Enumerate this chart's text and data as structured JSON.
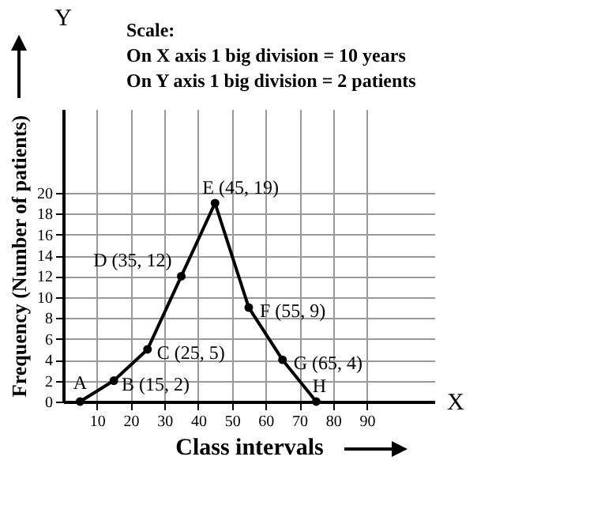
{
  "chart_data": {
    "type": "line",
    "xlabel": "Class intervals",
    "ylabel": "Frequency (Number of patients)",
    "x": [
      5,
      15,
      25,
      35,
      45,
      55,
      65,
      75
    ],
    "series": [
      {
        "color": "#000000",
        "values": [
          0,
          2,
          5,
          12,
          19,
          9,
          4,
          0
        ]
      }
    ],
    "xlim": [
      0,
      110
    ],
    "ylim": [
      0,
      28
    ],
    "xticks": [
      10,
      20,
      30,
      40,
      50,
      60,
      70,
      80,
      90
    ],
    "yticks": [
      0,
      2,
      4,
      6,
      8,
      10,
      12,
      14,
      16,
      18,
      20
    ],
    "grid": true,
    "marker": "circle",
    "line_style": "solid",
    "legend": false,
    "annotations": [
      {
        "text": "A",
        "x": 5,
        "y": 0
      },
      {
        "text": "B (15, 2)",
        "x": 15,
        "y": 2
      },
      {
        "text": "C (25, 5)",
        "x": 25,
        "y": 5
      },
      {
        "text": "D (35, 12)",
        "x": 35,
        "y": 12
      },
      {
        "text": "E (45, 19)",
        "x": 45,
        "y": 19
      },
      {
        "text": "F (55, 9)",
        "x": 55,
        "y": 9
      },
      {
        "text": "G (65, 4)",
        "x": 65,
        "y": 4
      },
      {
        "text": "H",
        "x": 75,
        "y": 0
      },
      "Scale:",
      "On X axis 1 big division = 10 years",
      "On Y axis 1 big division = 2 patients",
      "X",
      "Y"
    ]
  }
}
